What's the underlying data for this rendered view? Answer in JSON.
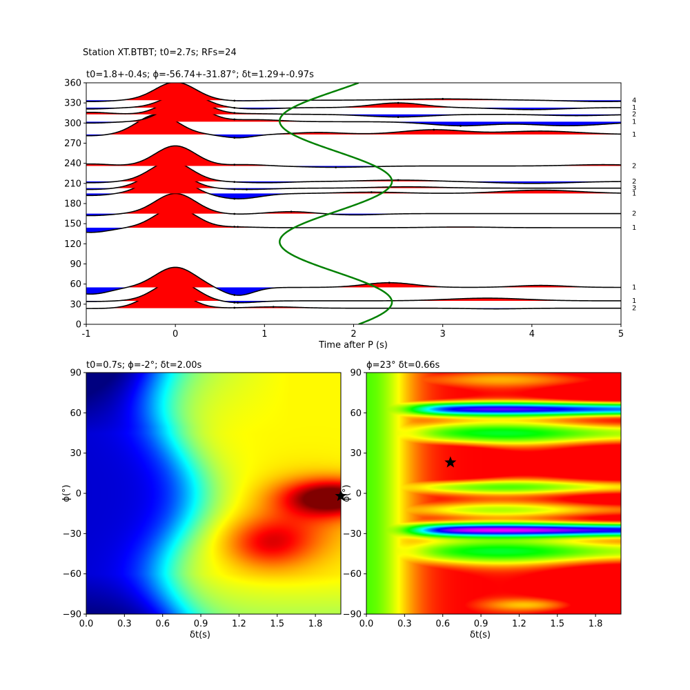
{
  "figure": {
    "suptitle": "Station XT.BTBT; t0=2.7s; RFs=24"
  },
  "colors": {
    "positive_fill": "#ff0000",
    "negative_fill": "#0000ff",
    "trace": "#000000",
    "model_curve": "#008000"
  },
  "chart_data": [
    {
      "type": "line",
      "panel": "receiver-functions",
      "title": "t0=1.8+-0.4s; ϕ=-56.74+-31.87°; δt=1.29+-0.97s",
      "xlabel": "Time after P (s)",
      "ylabel": "",
      "xlim": [
        -1,
        5
      ],
      "ylim": [
        0,
        360
      ],
      "xticks": [
        "-1",
        "0",
        "1",
        "2",
        "3",
        "4",
        "5"
      ],
      "yticks": [
        "0",
        "30",
        "60",
        "90",
        "120",
        "150",
        "180",
        "210",
        "240",
        "270",
        "300",
        "330",
        "360"
      ],
      "traces": [
        {
          "baz": 24,
          "count": "2",
          "peak_t": -0.1,
          "amp": 30,
          "pre": -0.5,
          "late": [
            [
              1.1,
              2,
              0.4
            ],
            [
              3.6,
              -1,
              0.4
            ]
          ]
        },
        {
          "baz": 35,
          "count": "1",
          "peak_t": 0.0,
          "amp": 30,
          "pre": -1.0,
          "late": [
            [
              0.7,
              -3,
              0.3
            ],
            [
              3.5,
              4,
              0.6
            ]
          ]
        },
        {
          "baz": 55,
          "count": "1",
          "peak_t": 0.0,
          "amp": 30,
          "pre": -10,
          "late": [
            [
              0.7,
              -12,
              0.25
            ],
            [
              2.4,
              7,
              0.4
            ],
            [
              4.1,
              3,
              0.4
            ]
          ]
        },
        {
          "baz": 144,
          "count": "1",
          "peak_t": 0.0,
          "amp": 30,
          "pre": -7,
          "late": [
            [
              0.7,
              1,
              0.3
            ],
            [
              3.2,
              1,
              0.5
            ]
          ]
        },
        {
          "baz": 165,
          "count": "2",
          "peak_t": 0.0,
          "amp": 30,
          "pre": -3,
          "late": [
            [
              0.7,
              -1,
              0.3
            ],
            [
              1.3,
              3,
              0.35
            ],
            [
              2.0,
              -2,
              0.4
            ]
          ]
        },
        {
          "baz": 195,
          "count": "1",
          "peak_t": -0.1,
          "amp": 30,
          "pre": -3,
          "late": [
            [
              0.7,
              -8,
              0.35
            ],
            [
              2.2,
              2,
              0.5
            ],
            [
              4.1,
              5,
              0.6
            ]
          ]
        },
        {
          "baz": 203,
          "count": "3",
          "peak_t": -0.1,
          "amp": 30,
          "pre": -2,
          "late": [
            [
              0.8,
              -2,
              0.4
            ],
            [
              2.6,
              2,
              0.5
            ]
          ]
        },
        {
          "baz": 213,
          "count": "2",
          "peak_t": -0.05,
          "amp": 30,
          "pre": -2,
          "late": [
            [
              1.0,
              -2,
              0.4
            ],
            [
              2.5,
              2,
              0.5
            ],
            [
              4.0,
              -3,
              0.6
            ]
          ]
        },
        {
          "baz": 236,
          "count": "2",
          "peak_t": 0.0,
          "amp": 30,
          "pre": 3,
          "late": [
            [
              0.8,
              2,
              0.3
            ],
            [
              1.8,
              -2,
              0.5
            ],
            [
              4.8,
              2,
              0.5
            ]
          ]
        },
        {
          "baz": 283,
          "count": "1",
          "peak_t": -0.2,
          "amp": 30,
          "pre": -2,
          "late": [
            [
              0.7,
              -5,
              0.25
            ],
            [
              1.6,
              3,
              0.4
            ],
            [
              2.9,
              7,
              0.5
            ],
            [
              4.1,
              5,
              0.6
            ]
          ]
        },
        {
          "baz": 302,
          "count": "1",
          "peak_t": 0.1,
          "amp": 30,
          "pre": -2,
          "late": [
            [
              0.9,
              3,
              0.4
            ],
            [
              3.2,
              -6,
              0.5
            ],
            [
              4.4,
              -6,
              0.6
            ]
          ]
        },
        {
          "baz": 313,
          "count": "2",
          "peak_t": 0.1,
          "amp": 28,
          "pre": 3,
          "late": [
            [
              0.8,
              1,
              0.4
            ],
            [
              2.5,
              -4,
              0.5
            ],
            [
              4.5,
              -2,
              0.5
            ]
          ]
        },
        {
          "baz": 323,
          "count": "1",
          "peak_t": 0.1,
          "amp": 22,
          "pre": -2,
          "late": [
            [
              0.9,
              -2,
              0.35
            ],
            [
              2.5,
              7,
              0.4
            ],
            [
              4.0,
              -3,
              0.5
            ]
          ]
        },
        {
          "baz": 334,
          "count": "4",
          "peak_t": 0.0,
          "amp": 27,
          "pre": -2,
          "late": [
            [
              0.7,
              -1,
              0.3
            ],
            [
              3.0,
              2,
              0.7
            ],
            [
              4.8,
              -2,
              0.5
            ]
          ]
        }
      ],
      "model_curve": {
        "name": "",
        "t_center": 1.8,
        "t_amp": 0.63,
        "note_period_deg": 180,
        "phase_deg": 33
      }
    },
    {
      "type": "heatmap",
      "panel": "grid-search-left",
      "title": "t0=0.7s; ϕ=-2°; δt=2.00s",
      "xlabel": "δt(s)",
      "ylabel": "ϕ(°)",
      "xlim": [
        0,
        2
      ],
      "ylim": [
        -90,
        90
      ],
      "xticks": [
        "0.0",
        "0.3",
        "0.6",
        "0.9",
        "1.2",
        "1.5",
        "1.8"
      ],
      "yticks": [
        "−90",
        "−60",
        "−30",
        "0",
        "30",
        "60",
        "90"
      ],
      "colormap": "jet",
      "best": {
        "dt": 2.0,
        "phi": -2
      }
    },
    {
      "type": "heatmap",
      "panel": "grid-search-right",
      "title": "ϕ=23° δt=0.66s",
      "xlabel": "δt(s)",
      "ylabel": "ϕ(°)",
      "xlim": [
        0,
        2
      ],
      "ylim": [
        -90,
        90
      ],
      "xticks": [
        "0.0",
        "0.3",
        "0.6",
        "0.9",
        "1.2",
        "1.5",
        "1.8"
      ],
      "yticks": [
        "−90",
        "−60",
        "−30",
        "0",
        "30",
        "60",
        "90"
      ],
      "colormap": "hsv",
      "best": {
        "dt": 0.66,
        "phi": 23
      }
    }
  ]
}
